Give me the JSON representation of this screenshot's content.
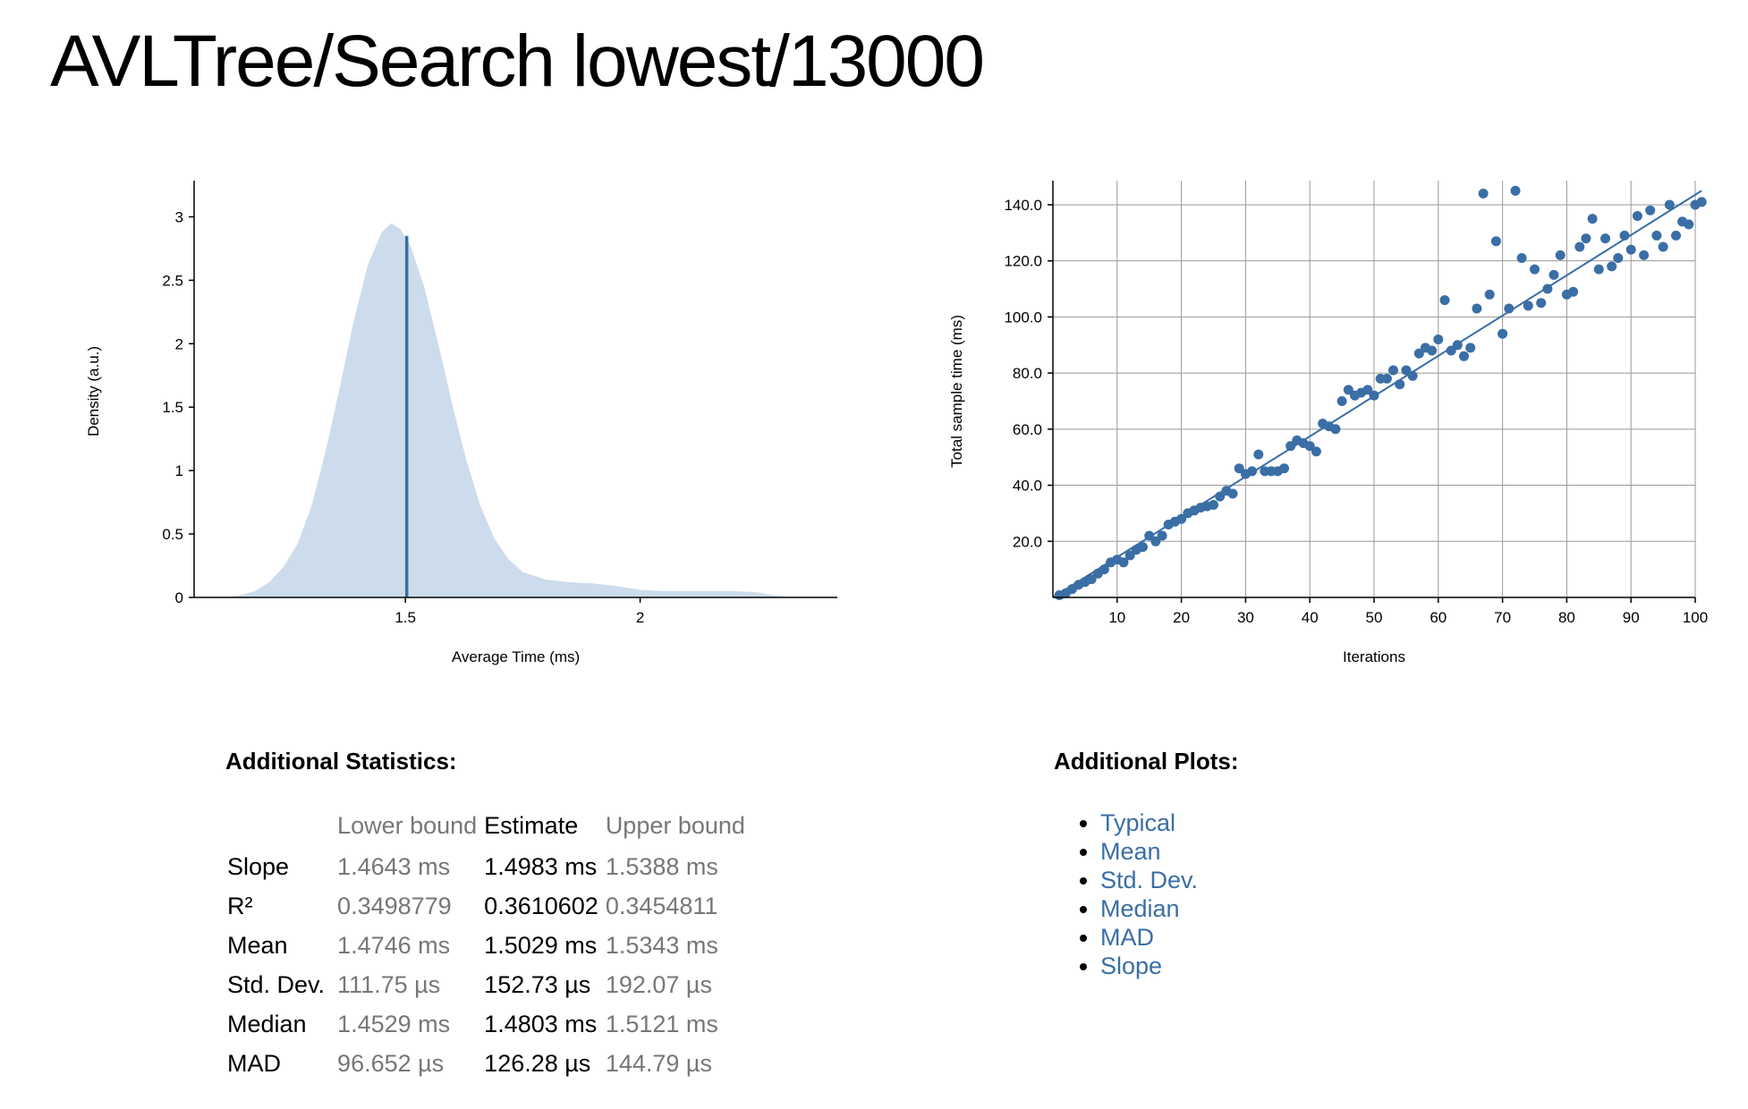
{
  "page": {
    "title": "AVLTree/Search lowest/13000"
  },
  "density_plot": {
    "xlabel": "Average Time (ms)",
    "ylabel": "Density (a.u.)",
    "x_ticks": [
      "1.5",
      "2"
    ],
    "y_ticks": [
      "0",
      "0.5",
      "1",
      "1.5",
      "2",
      "2.5",
      "3"
    ],
    "fill_color": "#cddcec",
    "line_color": "#3a6ea5"
  },
  "regression_plot": {
    "xlabel": "Iterations",
    "ylabel": "Total sample time (ms)",
    "x_ticks": [
      "10",
      "20",
      "30",
      "40",
      "50",
      "60",
      "70",
      "80",
      "90",
      "100"
    ],
    "y_ticks": [
      "20.0",
      "40.0",
      "60.0",
      "80.0",
      "100.0",
      "120.0",
      "140.0"
    ],
    "point_color": "#3a6ea5"
  },
  "chart_data": [
    {
      "type": "area",
      "xlabel": "Average Time (ms)",
      "ylabel": "Density (a.u.)",
      "xlim": [
        1.05,
        2.42
      ],
      "ylim": [
        0,
        3.25
      ],
      "x_ticks": [
        1.5,
        2
      ],
      "y_ticks": [
        0,
        0.5,
        1,
        1.5,
        2,
        2.5,
        3
      ],
      "points": [
        [
          1.12,
          0.0
        ],
        [
          1.15,
          0.02
        ],
        [
          1.18,
          0.05
        ],
        [
          1.21,
          0.12
        ],
        [
          1.24,
          0.24
        ],
        [
          1.27,
          0.42
        ],
        [
          1.3,
          0.72
        ],
        [
          1.33,
          1.15
        ],
        [
          1.36,
          1.65
        ],
        [
          1.39,
          2.18
        ],
        [
          1.42,
          2.62
        ],
        [
          1.45,
          2.88
        ],
        [
          1.47,
          2.95
        ],
        [
          1.49,
          2.9
        ],
        [
          1.51,
          2.78
        ],
        [
          1.54,
          2.45
        ],
        [
          1.57,
          2.0
        ],
        [
          1.6,
          1.52
        ],
        [
          1.63,
          1.08
        ],
        [
          1.66,
          0.72
        ],
        [
          1.69,
          0.46
        ],
        [
          1.72,
          0.3
        ],
        [
          1.75,
          0.2
        ],
        [
          1.8,
          0.14
        ],
        [
          1.85,
          0.12
        ],
        [
          1.9,
          0.11
        ],
        [
          1.95,
          0.09
        ],
        [
          2.0,
          0.06
        ],
        [
          2.05,
          0.05
        ],
        [
          2.1,
          0.05
        ],
        [
          2.15,
          0.05
        ],
        [
          2.2,
          0.05
        ],
        [
          2.25,
          0.04
        ],
        [
          2.28,
          0.02
        ],
        [
          2.32,
          0.0
        ]
      ],
      "mean_line": {
        "x": 1.5029,
        "y": 2.85
      }
    },
    {
      "type": "scatter",
      "xlabel": "Iterations",
      "ylabel": "Total sample time (ms)",
      "xlim": [
        0,
        100
      ],
      "ylim": [
        0,
        147
      ],
      "x_ticks": [
        10,
        20,
        30,
        40,
        50,
        60,
        70,
        80,
        90,
        100
      ],
      "y_ticks": [
        20,
        40,
        60,
        80,
        100,
        120,
        140
      ],
      "points": [
        [
          1,
          0.8
        ],
        [
          2,
          1.5
        ],
        [
          3,
          3
        ],
        [
          4,
          4.5
        ],
        [
          5,
          5.5
        ],
        [
          6,
          6.5
        ],
        [
          7,
          8.5
        ],
        [
          8,
          10
        ],
        [
          9,
          12.5
        ],
        [
          10,
          13.5
        ],
        [
          11,
          12.5
        ],
        [
          12,
          15
        ],
        [
          13,
          17
        ],
        [
          14,
          18
        ],
        [
          15,
          22
        ],
        [
          16,
          20
        ],
        [
          17,
          22
        ],
        [
          18,
          26
        ],
        [
          19,
          27
        ],
        [
          20,
          28
        ],
        [
          21,
          30
        ],
        [
          22,
          31
        ],
        [
          23,
          32
        ],
        [
          24,
          32.5
        ],
        [
          25,
          33
        ],
        [
          26,
          36
        ],
        [
          27,
          38
        ],
        [
          28,
          37
        ],
        [
          29,
          46
        ],
        [
          30,
          44
        ],
        [
          31,
          45
        ],
        [
          32,
          51
        ],
        [
          33,
          45
        ],
        [
          34,
          45
        ],
        [
          35,
          45
        ],
        [
          36,
          46
        ],
        [
          37,
          54
        ],
        [
          38,
          56
        ],
        [
          39,
          55
        ],
        [
          40,
          54
        ],
        [
          41,
          52
        ],
        [
          42,
          62
        ],
        [
          43,
          61
        ],
        [
          44,
          60
        ],
        [
          45,
          70
        ],
        [
          46,
          74
        ],
        [
          47,
          72
        ],
        [
          48,
          73
        ],
        [
          49,
          74
        ],
        [
          50,
          72
        ],
        [
          51,
          78
        ],
        [
          52,
          78
        ],
        [
          53,
          81
        ],
        [
          54,
          76
        ],
        [
          55,
          81
        ],
        [
          56,
          79
        ],
        [
          57,
          87
        ],
        [
          58,
          89
        ],
        [
          59,
          88
        ],
        [
          60,
          92
        ],
        [
          61,
          106
        ],
        [
          62,
          88
        ],
        [
          63,
          90
        ],
        [
          64,
          86
        ],
        [
          65,
          89
        ],
        [
          66,
          103
        ],
        [
          67,
          144
        ],
        [
          68,
          108
        ],
        [
          69,
          127
        ],
        [
          70,
          94
        ],
        [
          71,
          103
        ],
        [
          72,
          145
        ],
        [
          73,
          121
        ],
        [
          74,
          104
        ],
        [
          75,
          117
        ],
        [
          76,
          105
        ],
        [
          77,
          110
        ],
        [
          78,
          115
        ],
        [
          79,
          122
        ],
        [
          80,
          108
        ],
        [
          81,
          109
        ],
        [
          82,
          125
        ],
        [
          83,
          128
        ],
        [
          84,
          135
        ],
        [
          85,
          117
        ],
        [
          86,
          128
        ],
        [
          87,
          118
        ],
        [
          88,
          121
        ],
        [
          89,
          129
        ],
        [
          90,
          124
        ],
        [
          91,
          136
        ],
        [
          92,
          122
        ],
        [
          93,
          138
        ],
        [
          94,
          129
        ],
        [
          95,
          125
        ],
        [
          96,
          140
        ],
        [
          97,
          129
        ],
        [
          98,
          134
        ],
        [
          99,
          133
        ],
        [
          100,
          140
        ],
        [
          101,
          141
        ]
      ],
      "fit_line": [
        [
          0,
          0
        ],
        [
          101,
          145
        ]
      ]
    }
  ],
  "stats": {
    "title": "Additional Statistics:",
    "headers": [
      "",
      "Lower bound",
      "Estimate",
      "Upper bound"
    ],
    "rows": [
      {
        "label": "Slope",
        "lower": "1.4643 ms",
        "estimate": "1.4983 ms",
        "upper": "1.5388 ms"
      },
      {
        "label": "R²",
        "lower": "0.3498779",
        "estimate": "0.3610602",
        "upper": "0.3454811"
      },
      {
        "label": "Mean",
        "lower": "1.4746 ms",
        "estimate": "1.5029 ms",
        "upper": "1.5343 ms"
      },
      {
        "label": "Std. Dev.",
        "lower": "111.75 µs",
        "estimate": "152.73 µs",
        "upper": "192.07 µs"
      },
      {
        "label": "Median",
        "lower": "1.4529 ms",
        "estimate": "1.4803 ms",
        "upper": "1.5121 ms"
      },
      {
        "label": "MAD",
        "lower": "96.652 µs",
        "estimate": "126.28 µs",
        "upper": "144.79 µs"
      }
    ]
  },
  "plots": {
    "title": "Additional Plots:",
    "links": [
      "Typical",
      "Mean",
      "Std. Dev.",
      "Median",
      "MAD",
      "Slope"
    ],
    "link_color": "#3a6ea5"
  }
}
